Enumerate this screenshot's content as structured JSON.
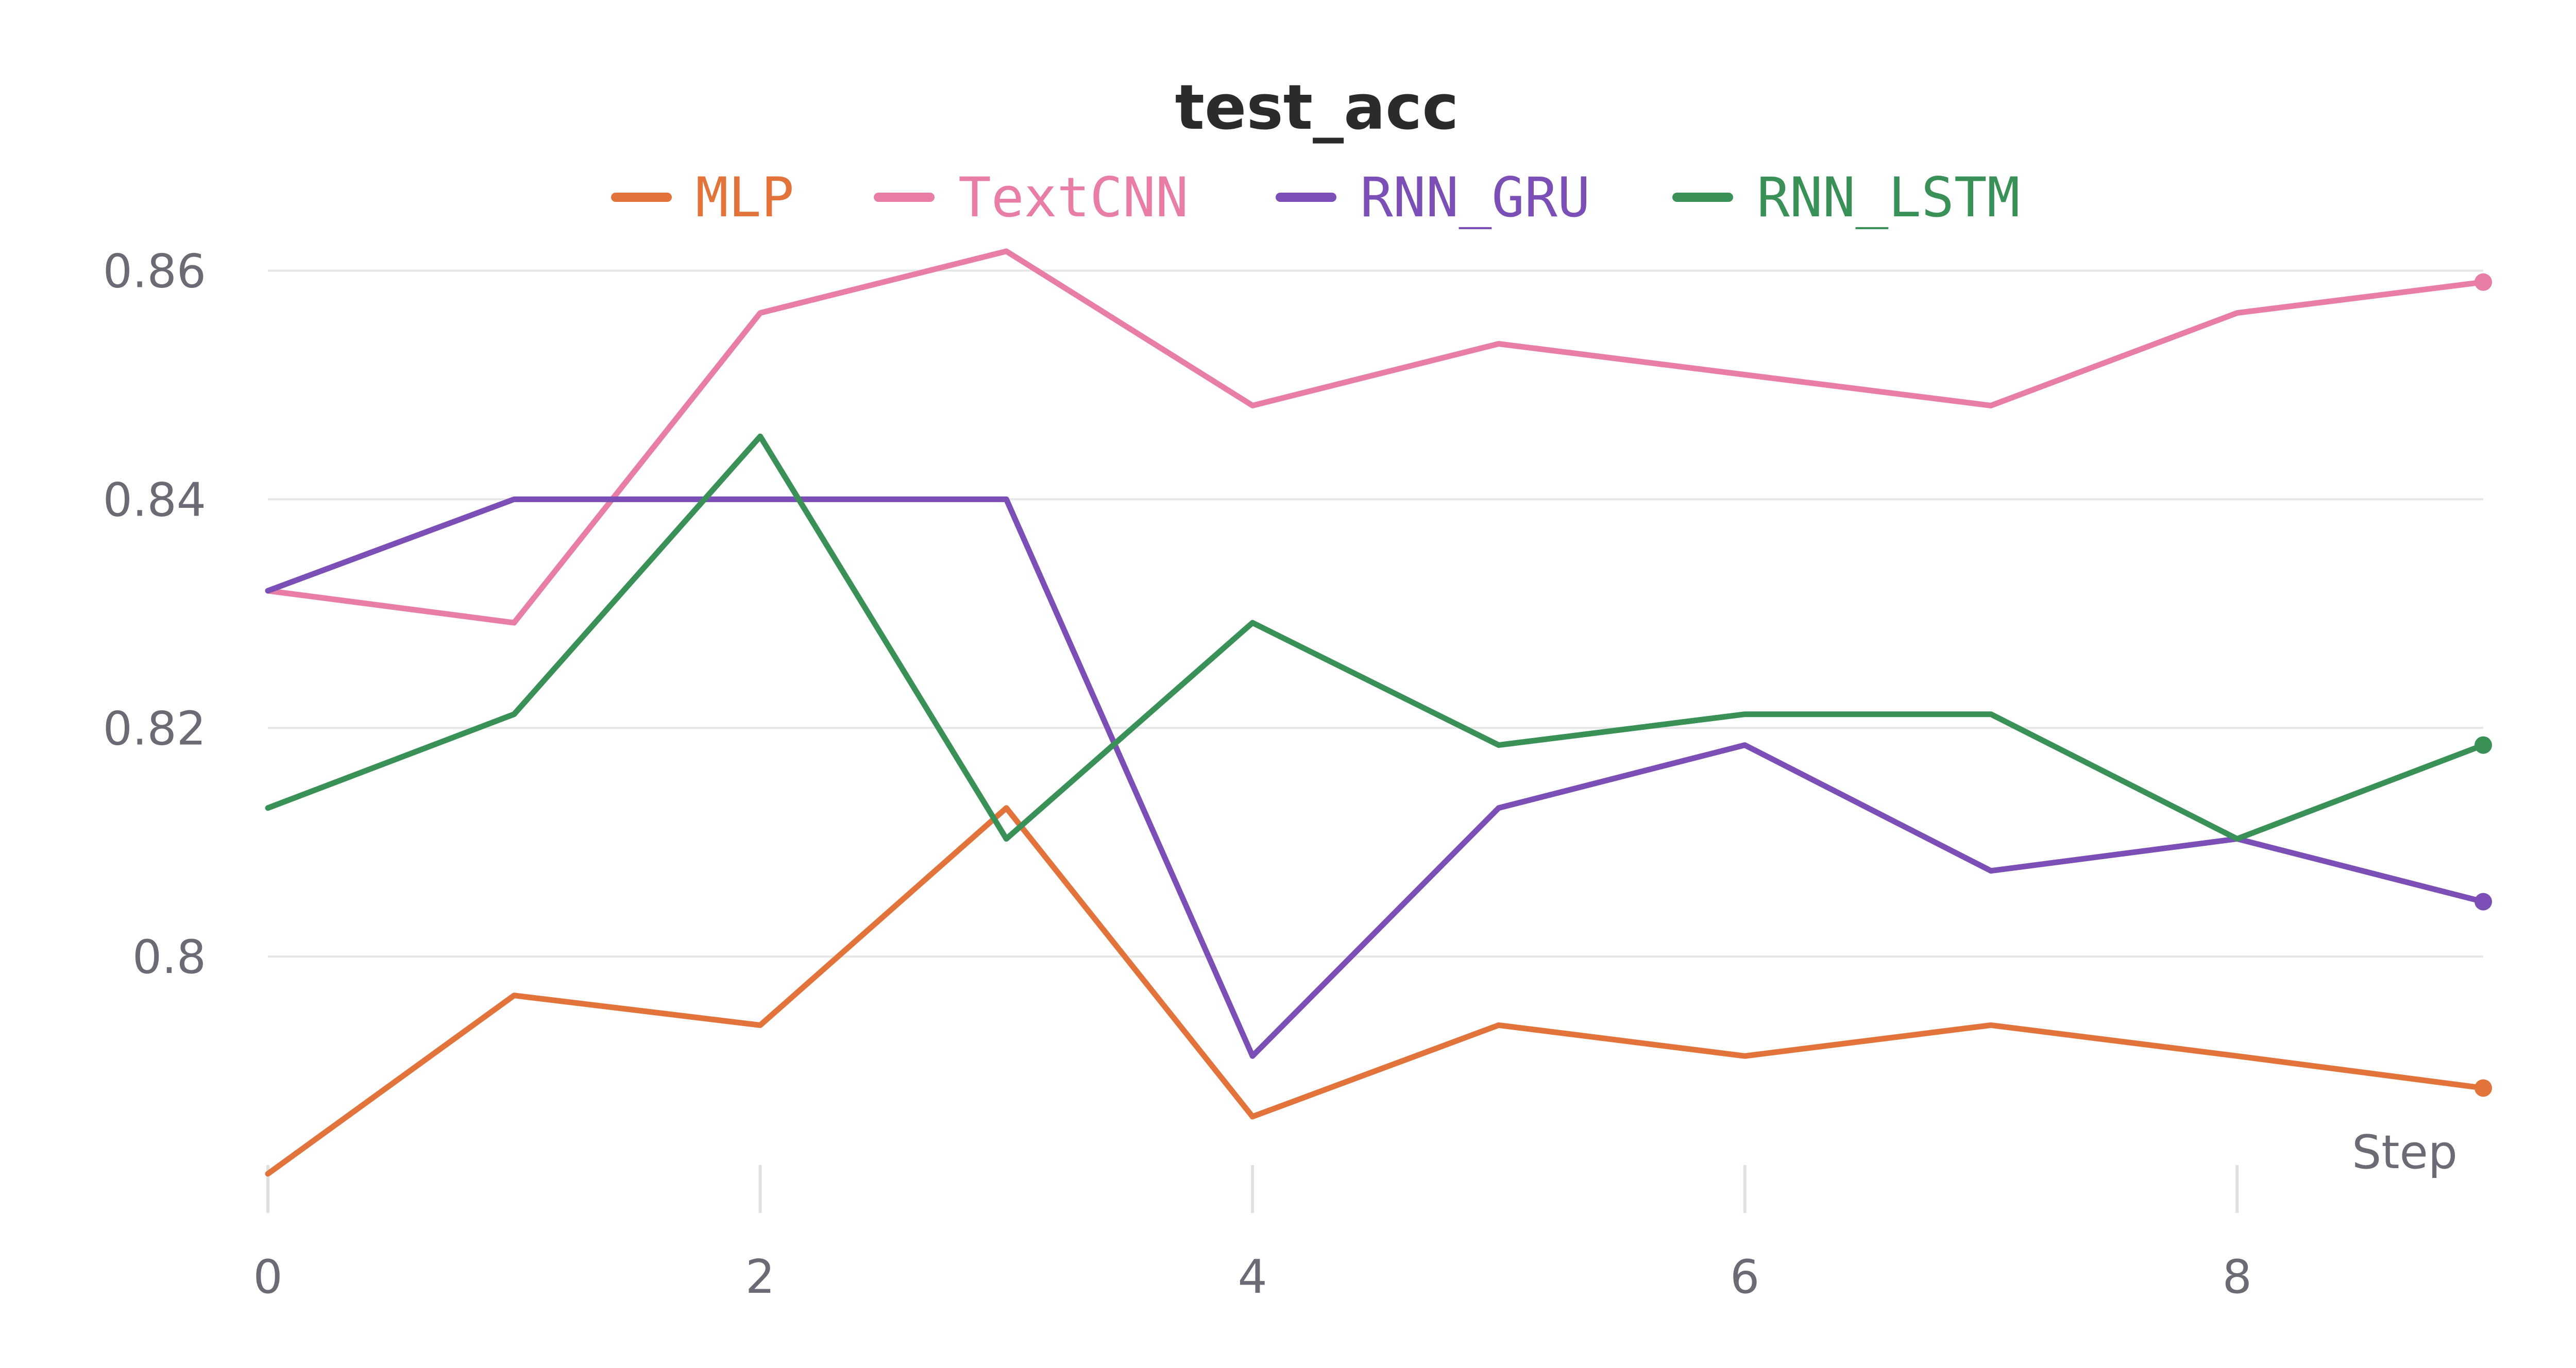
{
  "chart_data": {
    "type": "line",
    "title": "test_acc",
    "xlabel": "Step",
    "ylabel": "",
    "x": [
      0,
      1,
      2,
      3,
      4,
      5,
      6,
      7,
      8,
      9
    ],
    "xticks": [
      0,
      2,
      4,
      6,
      8
    ],
    "yticks": [
      0.8,
      0.82,
      0.84,
      0.86
    ],
    "ytick_labels": [
      "0.8",
      "0.82",
      "0.84",
      "0.86"
    ],
    "xlim": [
      0,
      9
    ],
    "ylim": [
      0.7805,
      0.8625
    ],
    "grid": true,
    "legend_position": "top-center",
    "series": [
      {
        "name": "MLP",
        "color": "#e2733a",
        "values": [
          0.781,
          0.7966,
          0.794,
          0.813,
          0.786,
          0.794,
          0.7913,
          0.794,
          0.7913,
          0.7885
        ]
      },
      {
        "name": "TextCNN",
        "color": "#e87ea6",
        "values": [
          0.832,
          0.8292,
          0.8563,
          0.8617,
          0.8482,
          0.8536,
          0.8509,
          0.8482,
          0.8563,
          0.859
        ]
      },
      {
        "name": "RNN_GRU",
        "color": "#7b4fb5",
        "values": [
          0.832,
          0.84,
          0.84,
          0.84,
          0.7913,
          0.813,
          0.8185,
          0.8075,
          0.8103,
          0.8048
        ]
      },
      {
        "name": "RNN_LSTM",
        "color": "#3a9158",
        "values": [
          0.813,
          0.8212,
          0.8455,
          0.8103,
          0.8292,
          0.8185,
          0.8212,
          0.8212,
          0.8103,
          0.8185
        ]
      }
    ]
  }
}
